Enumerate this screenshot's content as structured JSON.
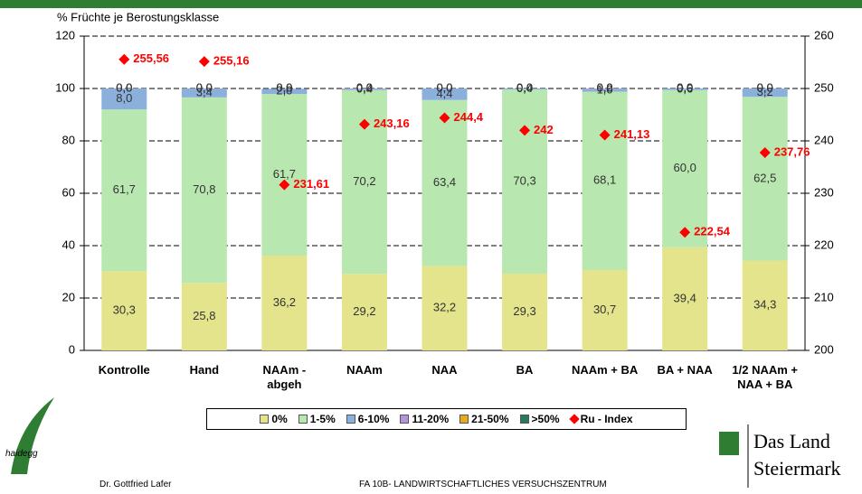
{
  "chart_data": {
    "type": "bar",
    "stacked": true,
    "y_label": "% Früchte je Berostungsklasse",
    "categories": [
      "Kontrolle",
      "Hand",
      "NAAm -\nabgeh",
      "NAAm",
      "NAA",
      "BA",
      "NAAm + BA",
      "BA + NAA",
      "1/2 NAAm +\nNAA + BA"
    ],
    "ylim": [
      0,
      120
    ],
    "yticks": [
      0,
      20,
      40,
      60,
      80,
      100,
      120
    ],
    "y2lim": [
      200,
      260
    ],
    "y2ticks": [
      200,
      210,
      220,
      230,
      240,
      250,
      260
    ],
    "series": [
      {
        "name": "0%",
        "color": "#e4e48c",
        "values": [
          30.3,
          25.8,
          36.2,
          29.2,
          32.2,
          29.3,
          30.7,
          39.4,
          34.3
        ],
        "value_labels": [
          "30,3",
          "25,8",
          "36,2",
          "29,2",
          "32,2",
          "29,3",
          "30,7",
          "39,4",
          "34,3"
        ]
      },
      {
        "name": "1-5%",
        "color": "#b8e8b0",
        "values": [
          61.7,
          70.8,
          61.7,
          70.2,
          63.4,
          70.3,
          68.1,
          60.0,
          62.5
        ],
        "value_labels": [
          "61,7",
          "70,8",
          "61,7",
          "70,2",
          "63,4",
          "70,3",
          "68,1",
          "60,0",
          "62,5"
        ]
      },
      {
        "name": "6-10%",
        "color": "#8cb0dc",
        "values": [
          8.0,
          3.4,
          2.0,
          0.4,
          4.4,
          0.4,
          1.0,
          0.6,
          3.2
        ],
        "value_labels": [
          "8,0",
          "3,4",
          "2,0",
          "0,4",
          "4,4",
          "0,4",
          "1,0",
          "0,6",
          "3,2"
        ]
      },
      {
        "name": "11-20%",
        "color": "#b494dc",
        "values": [
          0.0,
          0.0,
          0.0,
          0.2,
          0.0,
          0.0,
          0.2,
          0.0,
          0.0
        ],
        "value_labels": [
          "0,0",
          "0,0",
          "0,0",
          "0,2",
          "0,0",
          "0,0",
          "0,2",
          "0,0",
          "0,0"
        ]
      },
      {
        "name": "21-50%",
        "color": "#e8a820",
        "values": [
          0.0,
          0.0,
          0.0,
          0.0,
          0.0,
          0.0,
          0.0,
          0.0,
          0.0
        ],
        "value_labels": [
          "0,0",
          "0,0",
          "0,0",
          "0,0",
          "0,0",
          "0,0",
          "0,0",
          "0,0",
          "0,0"
        ]
      },
      {
        "name": ">50%",
        "color": "#2a7a5a",
        "values": [
          0.0,
          0.0,
          0.0,
          0.0,
          0.0,
          0.0,
          0.0,
          0.0,
          0.0
        ],
        "value_labels": [
          "0,0",
          "0,0",
          "0,0",
          "0,0",
          "0,0",
          "0,0",
          "0,0",
          "0,0",
          "0,0"
        ]
      },
      {
        "name": "Ru - Index",
        "color": "#ff0000",
        "axis": "y2",
        "values": [
          255.56,
          255.16,
          231.61,
          243.16,
          244.4,
          242,
          241.13,
          222.54,
          237.76
        ],
        "value_labels": [
          "255,56",
          "255,16",
          "231,61",
          "243,16",
          "244,4",
          "242",
          "241,13",
          "222,54",
          "237,76"
        ]
      }
    ]
  },
  "footer": {
    "author": "Dr. Gottfried Lafer",
    "institute": "FA 10B- LANDWIRTSCHAFTLICHES VERSUCHSZENTRUM",
    "logo_left": "haidegg",
    "logo_right_1": "Das Land",
    "logo_right_2": "Steiermark"
  }
}
